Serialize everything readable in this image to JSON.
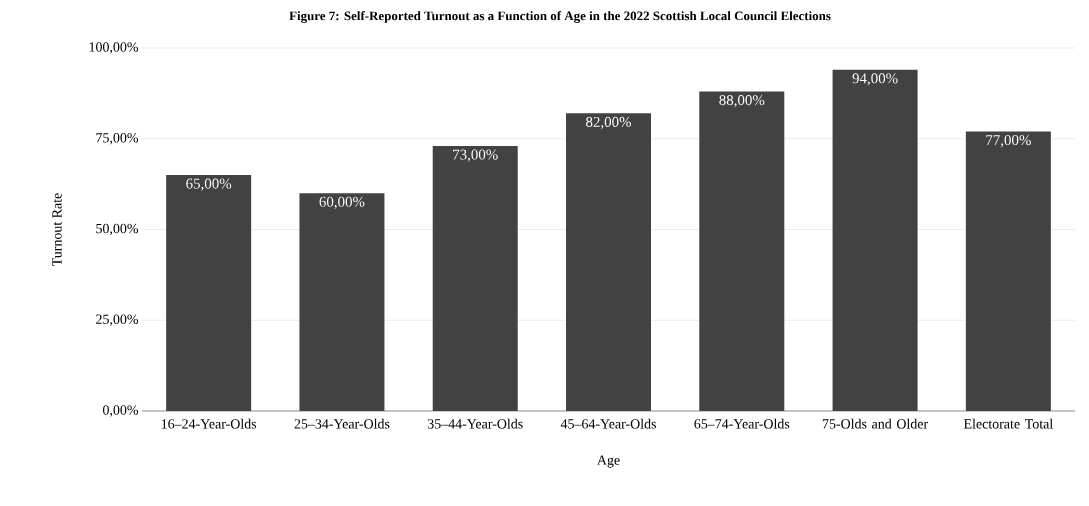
{
  "chart_data": {
    "type": "bar",
    "title": "Figure 7: Self-Reported Turnout as a Function of Age in the 2022 Scottish Local Council Elections",
    "xlabel": "Age",
    "ylabel": "Turnout Rate",
    "categories": [
      "16–24-Year-Olds",
      "25–34-Year-Olds",
      "35–44-Year-Olds",
      "45–64-Year-Olds",
      "65–74-Year-Olds",
      "75-Olds and Older",
      "Electorate Total"
    ],
    "values": [
      65,
      60,
      73,
      82,
      88,
      94,
      77
    ],
    "value_labels": [
      "65,00%",
      "60,00%",
      "73,00%",
      "82,00%",
      "88,00%",
      "94,00%",
      "77,00%"
    ],
    "color": "#424242",
    "ylim": [
      0,
      100
    ],
    "yticks": [
      {
        "value": 0,
        "label": "0,00%"
      },
      {
        "value": 25,
        "label": "25,00%"
      },
      {
        "value": 50,
        "label": "50,00%"
      },
      {
        "value": 75,
        "label": "75,00%"
      },
      {
        "value": 100,
        "label": "100,00%"
      }
    ],
    "grid": "y"
  }
}
